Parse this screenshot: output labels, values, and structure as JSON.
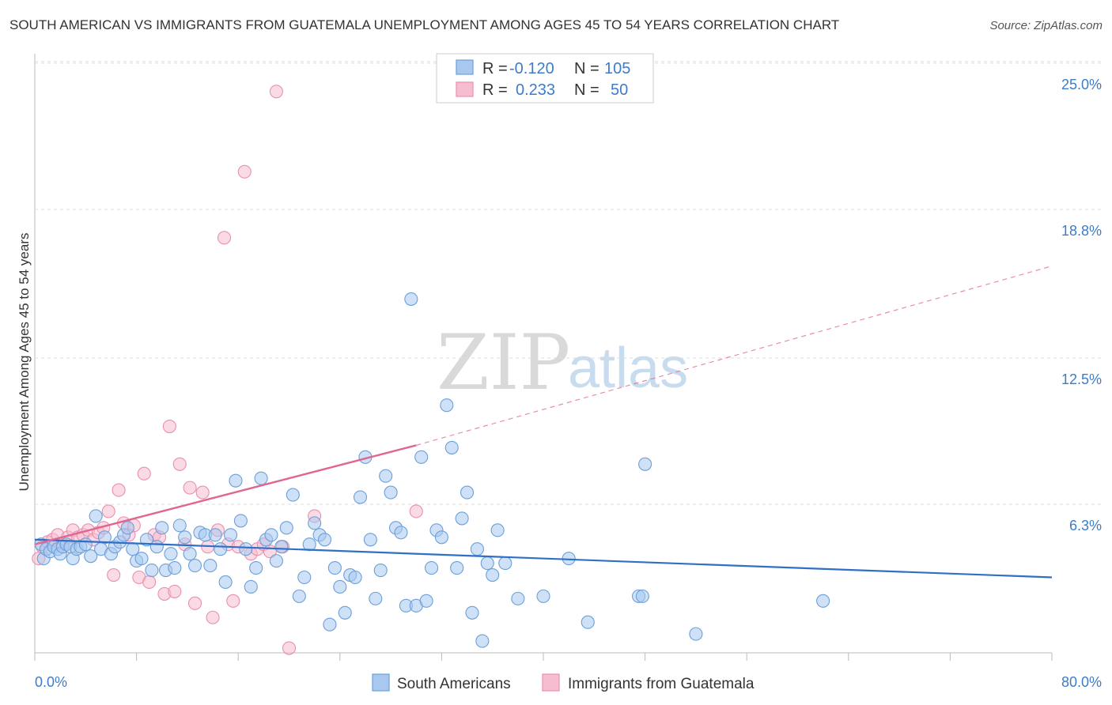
{
  "header": {
    "title": "SOUTH AMERICAN VS IMMIGRANTS FROM GUATEMALA UNEMPLOYMENT AMONG AGES 45 TO 54 YEARS CORRELATION CHART",
    "source": "Source: ZipAtlas.com"
  },
  "watermark": {
    "zip": "ZIP",
    "atlas": "atlas"
  },
  "legend": {
    "r_label": "R =",
    "n_label": "N =",
    "series_a": {
      "r": "-0.120",
      "n": "105"
    },
    "series_b": {
      "r": "0.233",
      "n": "50"
    }
  },
  "colors": {
    "blue_fill": "#a8c8f0",
    "blue_stroke": "#6c9fd8",
    "blue_line": "#2f6fc5",
    "pink_fill": "#f6bcd0",
    "pink_stroke": "#e890ae",
    "pink_line": "#e06690",
    "tick_text": "#3d7cc9",
    "grid": "#dddddd"
  },
  "chart_data": {
    "type": "scatter",
    "title": "SOUTH AMERICAN VS IMMIGRANTS FROM GUATEMALA UNEMPLOYMENT AMONG AGES 45 TO 54 YEARS CORRELATION CHART",
    "xlabel": "",
    "ylabel": "Unemployment Among Ages 45 to 54 years",
    "xlim": [
      0,
      80
    ],
    "ylim": [
      0,
      25
    ],
    "x_tick_labels": [
      "0.0%",
      "80.0%"
    ],
    "y_ticks": [
      6.3,
      12.5,
      18.8,
      25.0
    ],
    "y_tick_labels": [
      "6.3%",
      "12.5%",
      "18.8%",
      "25.0%"
    ],
    "grid": true,
    "legend_position": "top-center",
    "series": [
      {
        "name": "South Americans",
        "r": -0.12,
        "n": 105,
        "trend": {
          "x0": 0,
          "y0": 4.8,
          "x1": 80,
          "y1": 3.2
        },
        "points": [
          [
            0.5,
            4.6
          ],
          [
            0.7,
            4.0
          ],
          [
            0.9,
            4.4
          ],
          [
            1.2,
            4.3
          ],
          [
            1.5,
            4.5
          ],
          [
            1.8,
            4.4
          ],
          [
            2.0,
            4.2
          ],
          [
            2.2,
            4.5
          ],
          [
            2.5,
            4.6
          ],
          [
            2.8,
            4.5
          ],
          [
            3.0,
            4.0
          ],
          [
            3.3,
            4.4
          ],
          [
            3.6,
            4.5
          ],
          [
            4.0,
            4.6
          ],
          [
            4.4,
            4.1
          ],
          [
            4.8,
            5.8
          ],
          [
            5.2,
            4.4
          ],
          [
            5.5,
            4.9
          ],
          [
            6.0,
            4.2
          ],
          [
            6.3,
            4.5
          ],
          [
            6.7,
            4.7
          ],
          [
            7.0,
            5.0
          ],
          [
            7.3,
            5.3
          ],
          [
            7.7,
            4.4
          ],
          [
            8.0,
            3.9
          ],
          [
            8.4,
            4.0
          ],
          [
            8.8,
            4.8
          ],
          [
            9.2,
            3.5
          ],
          [
            9.6,
            4.5
          ],
          [
            10.0,
            5.3
          ],
          [
            10.3,
            3.5
          ],
          [
            10.7,
            4.2
          ],
          [
            11.0,
            3.6
          ],
          [
            11.4,
            5.4
          ],
          [
            11.8,
            4.9
          ],
          [
            12.2,
            4.2
          ],
          [
            12.6,
            3.7
          ],
          [
            13.0,
            5.1
          ],
          [
            13.4,
            5.0
          ],
          [
            13.8,
            3.7
          ],
          [
            14.2,
            5.0
          ],
          [
            14.6,
            4.4
          ],
          [
            15.0,
            3.0
          ],
          [
            15.4,
            5.0
          ],
          [
            15.8,
            7.3
          ],
          [
            16.2,
            5.6
          ],
          [
            16.6,
            4.4
          ],
          [
            17.0,
            2.8
          ],
          [
            17.4,
            3.6
          ],
          [
            17.8,
            7.4
          ],
          [
            18.2,
            4.8
          ],
          [
            18.6,
            5.0
          ],
          [
            19.0,
            3.9
          ],
          [
            19.4,
            4.5
          ],
          [
            19.8,
            5.3
          ],
          [
            20.3,
            6.7
          ],
          [
            20.8,
            2.4
          ],
          [
            21.2,
            3.2
          ],
          [
            21.6,
            4.6
          ],
          [
            22.0,
            5.5
          ],
          [
            22.4,
            5.0
          ],
          [
            22.8,
            4.8
          ],
          [
            23.2,
            1.2
          ],
          [
            23.6,
            3.6
          ],
          [
            24.0,
            2.8
          ],
          [
            24.4,
            1.7
          ],
          [
            24.8,
            3.3
          ],
          [
            25.2,
            3.2
          ],
          [
            25.6,
            6.6
          ],
          [
            26.0,
            8.3
          ],
          [
            26.4,
            4.8
          ],
          [
            26.8,
            2.3
          ],
          [
            27.2,
            3.5
          ],
          [
            27.6,
            7.5
          ],
          [
            28.0,
            6.8
          ],
          [
            28.4,
            5.3
          ],
          [
            28.8,
            5.1
          ],
          [
            29.2,
            2.0
          ],
          [
            29.6,
            15.0
          ],
          [
            30.0,
            2.0
          ],
          [
            30.4,
            8.3
          ],
          [
            30.8,
            2.2
          ],
          [
            31.2,
            3.6
          ],
          [
            31.6,
            5.2
          ],
          [
            32.0,
            4.9
          ],
          [
            32.4,
            10.5
          ],
          [
            32.8,
            8.7
          ],
          [
            33.2,
            3.6
          ],
          [
            33.6,
            5.7
          ],
          [
            34.0,
            6.8
          ],
          [
            34.4,
            1.7
          ],
          [
            34.8,
            4.4
          ],
          [
            35.2,
            0.5
          ],
          [
            35.6,
            3.8
          ],
          [
            36.0,
            3.3
          ],
          [
            36.4,
            5.2
          ],
          [
            37.0,
            3.8
          ],
          [
            38.0,
            2.3
          ],
          [
            40.0,
            2.4
          ],
          [
            42.0,
            4.0
          ],
          [
            43.5,
            1.3
          ],
          [
            47.5,
            2.4
          ],
          [
            47.8,
            2.4
          ],
          [
            48.0,
            8.0
          ],
          [
            52.0,
            0.8
          ],
          [
            62.0,
            2.2
          ]
        ]
      },
      {
        "name": "Immigrants from Guatemala",
        "r": 0.233,
        "n": 50,
        "trend": {
          "x0": 0,
          "y0": 4.6,
          "x1": 30,
          "y1": 8.8,
          "dashed_x1": 80,
          "dashed_y1": 16.4
        },
        "points": [
          [
            0.3,
            4.0
          ],
          [
            0.6,
            4.5
          ],
          [
            1.0,
            4.7
          ],
          [
            1.4,
            4.8
          ],
          [
            1.8,
            5.0
          ],
          [
            2.2,
            4.6
          ],
          [
            2.6,
            4.9
          ],
          [
            3.0,
            5.2
          ],
          [
            3.4,
            4.9
          ],
          [
            3.8,
            5.0
          ],
          [
            4.2,
            5.2
          ],
          [
            4.6,
            4.8
          ],
          [
            5.0,
            5.1
          ],
          [
            5.4,
            5.3
          ],
          [
            5.8,
            6.0
          ],
          [
            6.2,
            3.3
          ],
          [
            6.6,
            6.9
          ],
          [
            7.0,
            5.5
          ],
          [
            7.4,
            5.0
          ],
          [
            7.8,
            5.4
          ],
          [
            8.2,
            3.2
          ],
          [
            8.6,
            7.6
          ],
          [
            9.0,
            3.0
          ],
          [
            9.4,
            5.0
          ],
          [
            9.8,
            4.9
          ],
          [
            10.2,
            2.5
          ],
          [
            10.6,
            9.6
          ],
          [
            11.0,
            2.6
          ],
          [
            11.4,
            8.0
          ],
          [
            11.8,
            4.6
          ],
          [
            12.2,
            7.0
          ],
          [
            12.6,
            2.1
          ],
          [
            13.2,
            6.8
          ],
          [
            13.6,
            4.5
          ],
          [
            14.0,
            1.5
          ],
          [
            14.4,
            5.2
          ],
          [
            14.9,
            17.6
          ],
          [
            15.2,
            4.6
          ],
          [
            15.6,
            2.2
          ],
          [
            16.0,
            4.5
          ],
          [
            16.5,
            20.4
          ],
          [
            17.0,
            4.2
          ],
          [
            17.5,
            4.4
          ],
          [
            18.0,
            4.6
          ],
          [
            18.5,
            4.3
          ],
          [
            19.0,
            23.8
          ],
          [
            19.5,
            4.5
          ],
          [
            20.0,
            0.2
          ],
          [
            22.0,
            5.8
          ],
          [
            30.0,
            6.0
          ]
        ]
      }
    ]
  },
  "bottom_legend": {
    "a_label": "South Americans",
    "b_label": "Immigrants from Guatemala"
  }
}
